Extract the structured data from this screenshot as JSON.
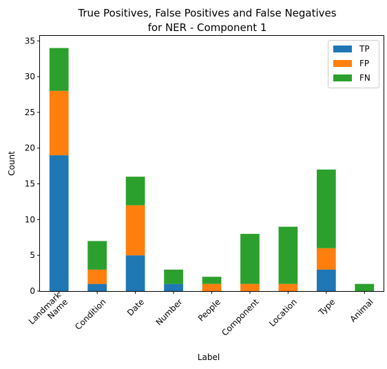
{
  "chart_data": {
    "type": "bar",
    "stacked": true,
    "title": [
      "True Positives, False Positives and False Negatives",
      "for NER - Component 1"
    ],
    "xlabel": "Label",
    "ylabel": "Count",
    "ylim": [
      0,
      35.7
    ],
    "yticks": [
      0,
      5,
      10,
      15,
      20,
      25,
      30,
      35
    ],
    "categories": [
      [
        "Landmark",
        "Name"
      ],
      [
        "Condition"
      ],
      [
        "Date"
      ],
      [
        "Number"
      ],
      [
        "People"
      ],
      [
        "Component"
      ],
      [
        "Location"
      ],
      [
        "Type"
      ],
      [
        "Animal"
      ]
    ],
    "series": [
      {
        "name": "TP",
        "color": "#1f77b4",
        "values": [
          19,
          1,
          5,
          1,
          0,
          0,
          0,
          3,
          0
        ]
      },
      {
        "name": "FP",
        "color": "#ff7f0e",
        "values": [
          9,
          2,
          7,
          0,
          1,
          1,
          1,
          3,
          0
        ]
      },
      {
        "name": "FN",
        "color": "#2ca02c",
        "values": [
          6,
          4,
          4,
          2,
          1,
          7,
          8,
          11,
          1
        ]
      }
    ],
    "legend": "top-right",
    "grid": false
  }
}
